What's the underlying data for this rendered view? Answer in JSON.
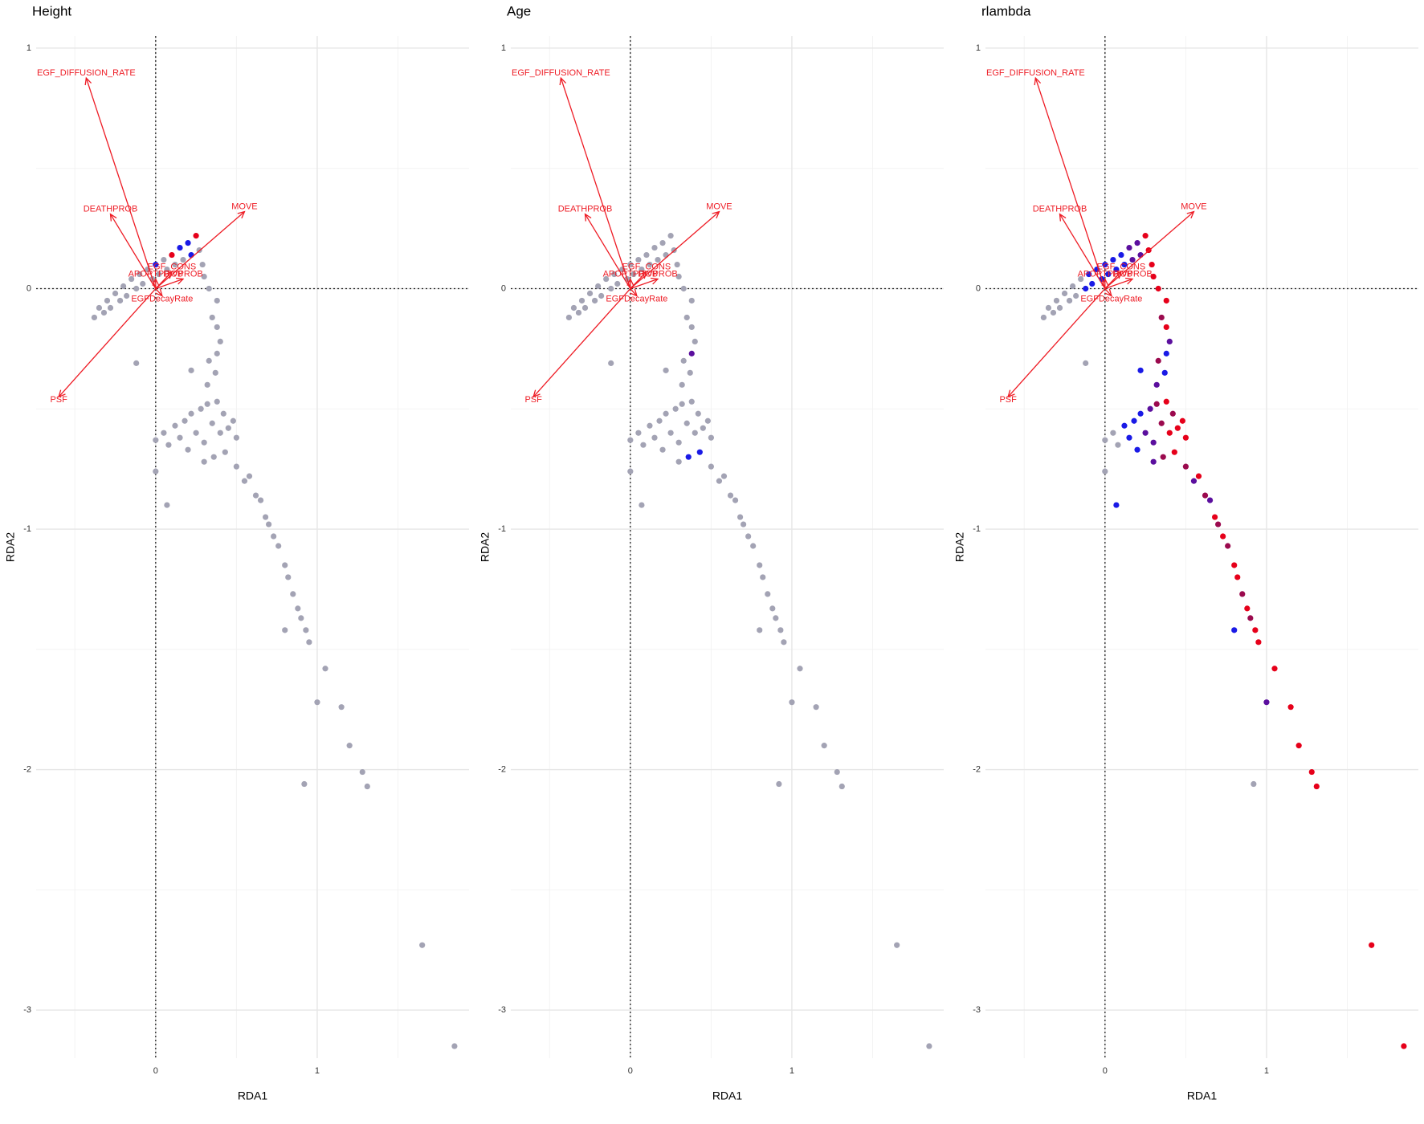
{
  "chart_data": [
    {
      "type": "biplot",
      "title": "Height",
      "x_label": "RDA1",
      "y_label": "RDA2",
      "xlim": [
        -0.74,
        1.94
      ],
      "ylim": [
        -3.2,
        1.05
      ],
      "xticks": [
        0,
        1
      ],
      "yticks": [
        -3,
        -2,
        -1,
        0,
        1
      ],
      "xminor": [
        -0.5,
        0.5,
        1.5
      ],
      "yminor": [
        -2.5,
        -1.5,
        -0.5,
        0.5
      ],
      "grid": true,
      "vline": 0,
      "hline": 0,
      "arrow_color": "#ee1c25",
      "arrows": [
        {
          "label": "EGF_DIFFUSION_RATE",
          "x": -0.43,
          "y": 0.876
        },
        {
          "label": "DEATHPROB",
          "x": -0.28,
          "y": 0.31
        },
        {
          "label": "MOVE",
          "x": 0.55,
          "y": 0.32
        },
        {
          "label": "PSF",
          "x": -0.6,
          "y": -0.45
        },
        {
          "label": "EGF_CONS",
          "x": 0.1,
          "y": 0.07
        },
        {
          "label": "APOPTPROB",
          "x": 0.0,
          "y": 0.04
        },
        {
          "label": "DIVPROB",
          "x": 0.17,
          "y": 0.04
        },
        {
          "label": "EGFDecayRate",
          "x": 0.04,
          "y": -0.03
        }
      ],
      "points": {
        "x": [
          -0.38,
          -0.35,
          -0.32,
          -0.3,
          -0.28,
          -0.25,
          -0.22,
          -0.2,
          -0.18,
          -0.15,
          -0.12,
          -0.1,
          -0.08,
          -0.05,
          -0.02,
          0.0,
          0.02,
          0.05,
          0.07,
          0.1,
          0.12,
          0.15,
          0.17,
          0.2,
          0.22,
          0.25,
          0.27,
          0.29,
          0.3,
          0.33,
          0.38,
          0.35,
          0.38,
          0.4,
          0.38,
          0.33,
          0.37,
          0.32,
          0.22,
          -0.12,
          0.0,
          0.05,
          0.08,
          0.12,
          0.15,
          0.18,
          0.2,
          0.22,
          0.25,
          0.28,
          0.3,
          0.32,
          0.35,
          0.38,
          0.4,
          0.42,
          0.45,
          0.48,
          0.5,
          0.3,
          0.36,
          0.43,
          0.0,
          0.07,
          0.5,
          0.55,
          0.58,
          0.62,
          0.65,
          0.68,
          0.7,
          0.73,
          0.76,
          0.8,
          0.82,
          0.85,
          0.88,
          0.9,
          0.93,
          0.8,
          0.95,
          1.05,
          1.0,
          1.15,
          1.2,
          1.28,
          1.31,
          0.92,
          1.65,
          1.85
        ],
        "y": [
          -0.12,
          -0.08,
          -0.1,
          -0.05,
          -0.08,
          -0.02,
          -0.05,
          0.01,
          -0.03,
          0.04,
          0.0,
          0.06,
          0.02,
          0.08,
          0.04,
          0.1,
          0.06,
          0.12,
          0.08,
          0.14,
          0.1,
          0.17,
          0.12,
          0.19,
          0.14,
          0.22,
          0.16,
          0.1,
          0.05,
          0.0,
          -0.05,
          -0.12,
          -0.16,
          -0.22,
          -0.27,
          -0.3,
          -0.35,
          -0.4,
          -0.34,
          -0.31,
          -0.63,
          -0.6,
          -0.65,
          -0.57,
          -0.62,
          -0.55,
          -0.67,
          -0.52,
          -0.6,
          -0.5,
          -0.64,
          -0.48,
          -0.56,
          -0.47,
          -0.6,
          -0.52,
          -0.58,
          -0.55,
          -0.62,
          -0.72,
          -0.7,
          -0.68,
          -0.76,
          -0.9,
          -0.74,
          -0.8,
          -0.78,
          -0.86,
          -0.88,
          -0.95,
          -0.98,
          -1.03,
          -1.07,
          -1.15,
          -1.2,
          -1.27,
          -1.33,
          -1.37,
          -1.42,
          -1.42,
          -1.47,
          -1.58,
          -1.72,
          -1.74,
          -1.9,
          -2.01,
          -2.07,
          -2.06,
          -2.73,
          -3.15
        ],
        "colors": [
          "#a3a3b4",
          "#a3a3b4",
          "#a3a3b4",
          "#a3a3b4",
          "#a3a3b4",
          "#a3a3b4",
          "#a3a3b4",
          "#a3a3b4",
          "#a3a3b4",
          "#a3a3b4",
          "#a3a3b4",
          "#a3a3b4",
          "#a3a3b4",
          "#a3a3b4",
          "#a3a3b4",
          "#1a1ae6",
          "#a3a3b4",
          "#a3a3b4",
          "#a3a3b4",
          "#e6001a",
          "#a3a3b4",
          "#1a1ae6",
          "#a3a3b4",
          "#1a1ae6",
          "#1a1ae6",
          "#e6001a",
          "#a3a3b4",
          "#a3a3b4",
          "#a3a3b4",
          "#a3a3b4",
          "#a3a3b4",
          "#a3a3b4",
          "#a3a3b4",
          "#a3a3b4",
          "#a3a3b4",
          "#a3a3b4",
          "#a3a3b4",
          "#a3a3b4",
          "#a3a3b4",
          "#a3a3b4",
          "#a3a3b4",
          "#a3a3b4",
          "#a3a3b4",
          "#a3a3b4",
          "#a3a3b4",
          "#a3a3b4",
          "#a3a3b4",
          "#a3a3b4",
          "#a3a3b4",
          "#a3a3b4",
          "#a3a3b4",
          "#a3a3b4",
          "#a3a3b4",
          "#a3a3b4",
          "#a3a3b4",
          "#a3a3b4",
          "#a3a3b4",
          "#a3a3b4",
          "#a3a3b4",
          "#a3a3b4",
          "#a3a3b4",
          "#a3a3b4",
          "#a3a3b4",
          "#a3a3b4",
          "#a3a3b4",
          "#a3a3b4",
          "#a3a3b4",
          "#a3a3b4",
          "#a3a3b4",
          "#a3a3b4",
          "#a3a3b4",
          "#a3a3b4",
          "#a3a3b4",
          "#a3a3b4",
          "#a3a3b4",
          "#a3a3b4",
          "#a3a3b4",
          "#a3a3b4",
          "#a3a3b4",
          "#a3a3b4",
          "#a3a3b4",
          "#a3a3b4",
          "#a3a3b4",
          "#a3a3b4",
          "#a3a3b4",
          "#a3a3b4",
          "#a3a3b4",
          "#a3a3b4",
          "#a3a3b4",
          "#a3a3b4"
        ]
      }
    },
    {
      "type": "biplot",
      "title": "Age",
      "x_label": "RDA1",
      "y_label": "RDA2",
      "xlim": [
        -0.74,
        1.94
      ],
      "ylim": [
        -3.2,
        1.05
      ],
      "xticks": [
        0,
        1
      ],
      "yticks": [
        -3,
        -2,
        -1,
        0,
        1
      ],
      "xminor": [
        -0.5,
        0.5,
        1.5
      ],
      "yminor": [
        -2.5,
        -1.5,
        -0.5,
        0.5
      ],
      "grid": true,
      "vline": 0,
      "hline": 0,
      "arrow_color": "#ee1c25",
      "arrows": [
        {
          "label": "EGF_DIFFUSION_RATE",
          "x": -0.43,
          "y": 0.876
        },
        {
          "label": "DEATHPROB",
          "x": -0.28,
          "y": 0.31
        },
        {
          "label": "MOVE",
          "x": 0.55,
          "y": 0.32
        },
        {
          "label": "PSF",
          "x": -0.6,
          "y": -0.45
        },
        {
          "label": "EGF_CONS",
          "x": 0.1,
          "y": 0.07
        },
        {
          "label": "APOPTPROB",
          "x": 0.0,
          "y": 0.04
        },
        {
          "label": "DIVPROB",
          "x": 0.17,
          "y": 0.04
        },
        {
          "label": "EGFDecayRate",
          "x": 0.04,
          "y": -0.03
        }
      ],
      "points": {
        "x": [
          -0.38,
          -0.35,
          -0.32,
          -0.3,
          -0.28,
          -0.25,
          -0.22,
          -0.2,
          -0.18,
          -0.15,
          -0.12,
          -0.1,
          -0.08,
          -0.05,
          -0.02,
          0.0,
          0.02,
          0.05,
          0.07,
          0.1,
          0.12,
          0.15,
          0.17,
          0.2,
          0.22,
          0.25,
          0.27,
          0.29,
          0.3,
          0.33,
          0.38,
          0.35,
          0.38,
          0.4,
          0.38,
          0.33,
          0.37,
          0.32,
          0.22,
          -0.12,
          0.0,
          0.05,
          0.08,
          0.12,
          0.15,
          0.18,
          0.2,
          0.22,
          0.25,
          0.28,
          0.3,
          0.32,
          0.35,
          0.38,
          0.4,
          0.42,
          0.45,
          0.48,
          0.5,
          0.3,
          0.36,
          0.43,
          0.0,
          0.07,
          0.5,
          0.55,
          0.58,
          0.62,
          0.65,
          0.68,
          0.7,
          0.73,
          0.76,
          0.8,
          0.82,
          0.85,
          0.88,
          0.9,
          0.93,
          0.8,
          0.95,
          1.05,
          1.0,
          1.15,
          1.2,
          1.28,
          1.31,
          0.92,
          1.65,
          1.85
        ],
        "y": [
          -0.12,
          -0.08,
          -0.1,
          -0.05,
          -0.08,
          -0.02,
          -0.05,
          0.01,
          -0.03,
          0.04,
          0.0,
          0.06,
          0.02,
          0.08,
          0.04,
          0.1,
          0.06,
          0.12,
          0.08,
          0.14,
          0.1,
          0.17,
          0.12,
          0.19,
          0.14,
          0.22,
          0.16,
          0.1,
          0.05,
          0.0,
          -0.05,
          -0.12,
          -0.16,
          -0.22,
          -0.27,
          -0.3,
          -0.35,
          -0.4,
          -0.34,
          -0.31,
          -0.63,
          -0.6,
          -0.65,
          -0.57,
          -0.62,
          -0.55,
          -0.67,
          -0.52,
          -0.6,
          -0.5,
          -0.64,
          -0.48,
          -0.56,
          -0.47,
          -0.6,
          -0.52,
          -0.58,
          -0.55,
          -0.62,
          -0.72,
          -0.7,
          -0.68,
          -0.76,
          -0.9,
          -0.74,
          -0.8,
          -0.78,
          -0.86,
          -0.88,
          -0.95,
          -0.98,
          -1.03,
          -1.07,
          -1.15,
          -1.2,
          -1.27,
          -1.33,
          -1.37,
          -1.42,
          -1.42,
          -1.47,
          -1.58,
          -1.72,
          -1.74,
          -1.9,
          -2.01,
          -2.07,
          -2.06,
          -2.73,
          -3.15
        ],
        "colors": [
          "#a3a3b4",
          "#a3a3b4",
          "#a3a3b4",
          "#a3a3b4",
          "#a3a3b4",
          "#a3a3b4",
          "#a3a3b4",
          "#a3a3b4",
          "#a3a3b4",
          "#a3a3b4",
          "#a3a3b4",
          "#a3a3b4",
          "#a3a3b4",
          "#a3a3b4",
          "#a3a3b4",
          "#a3a3b4",
          "#a3a3b4",
          "#a3a3b4",
          "#a3a3b4",
          "#a3a3b4",
          "#a3a3b4",
          "#a3a3b4",
          "#a3a3b4",
          "#a3a3b4",
          "#a3a3b4",
          "#a3a3b4",
          "#a3a3b4",
          "#a3a3b4",
          "#a3a3b4",
          "#a3a3b4",
          "#a3a3b4",
          "#a3a3b4",
          "#a3a3b4",
          "#a3a3b4",
          "#5b0f9e",
          "#a3a3b4",
          "#a3a3b4",
          "#a3a3b4",
          "#a3a3b4",
          "#a3a3b4",
          "#a3a3b4",
          "#a3a3b4",
          "#a3a3b4",
          "#a3a3b4",
          "#a3a3b4",
          "#a3a3b4",
          "#a3a3b4",
          "#a3a3b4",
          "#a3a3b4",
          "#a3a3b4",
          "#a3a3b4",
          "#a3a3b4",
          "#a3a3b4",
          "#a3a3b4",
          "#a3a3b4",
          "#a3a3b4",
          "#a3a3b4",
          "#a3a3b4",
          "#a3a3b4",
          "#a3a3b4",
          "#1a1ae6",
          "#1a1ae6",
          "#a3a3b4",
          "#a3a3b4",
          "#a3a3b4",
          "#a3a3b4",
          "#a3a3b4",
          "#a3a3b4",
          "#a3a3b4",
          "#a3a3b4",
          "#a3a3b4",
          "#a3a3b4",
          "#a3a3b4",
          "#a3a3b4",
          "#a3a3b4",
          "#a3a3b4",
          "#a3a3b4",
          "#a3a3b4",
          "#a3a3b4",
          "#a3a3b4",
          "#a3a3b4",
          "#a3a3b4",
          "#a3a3b4",
          "#a3a3b4",
          "#a3a3b4",
          "#a3a3b4",
          "#a3a3b4",
          "#a3a3b4",
          "#a3a3b4",
          "#a3a3b4"
        ]
      }
    },
    {
      "type": "biplot",
      "title": "rlambda",
      "x_label": "RDA1",
      "y_label": "RDA2",
      "xlim": [
        -0.74,
        1.94
      ],
      "ylim": [
        -3.2,
        1.05
      ],
      "xticks": [
        0,
        1
      ],
      "yticks": [
        -3,
        -2,
        -1,
        0,
        1
      ],
      "xminor": [
        -0.5,
        0.5,
        1.5
      ],
      "yminor": [
        -2.5,
        -1.5,
        -0.5,
        0.5
      ],
      "grid": true,
      "vline": 0,
      "hline": 0,
      "arrow_color": "#ee1c25",
      "arrows": [
        {
          "label": "EGF_DIFFUSION_RATE",
          "x": -0.43,
          "y": 0.876
        },
        {
          "label": "DEATHPROB",
          "x": -0.28,
          "y": 0.31
        },
        {
          "label": "MOVE",
          "x": 0.55,
          "y": 0.32
        },
        {
          "label": "PSF",
          "x": -0.6,
          "y": -0.45
        },
        {
          "label": "EGF_CONS",
          "x": 0.1,
          "y": 0.07
        },
        {
          "label": "APOPTPROB",
          "x": 0.0,
          "y": 0.04
        },
        {
          "label": "DIVPROB",
          "x": 0.17,
          "y": 0.04
        },
        {
          "label": "EGFDecayRate",
          "x": 0.04,
          "y": -0.03
        }
      ],
      "points": {
        "x": [
          -0.38,
          -0.35,
          -0.32,
          -0.3,
          -0.28,
          -0.25,
          -0.22,
          -0.2,
          -0.18,
          -0.15,
          -0.12,
          -0.1,
          -0.08,
          -0.05,
          -0.02,
          0.0,
          0.02,
          0.05,
          0.07,
          0.1,
          0.12,
          0.15,
          0.17,
          0.2,
          0.22,
          0.25,
          0.27,
          0.29,
          0.3,
          0.33,
          0.38,
          0.35,
          0.38,
          0.4,
          0.38,
          0.33,
          0.37,
          0.32,
          0.22,
          -0.12,
          0.0,
          0.05,
          0.08,
          0.12,
          0.15,
          0.18,
          0.2,
          0.22,
          0.25,
          0.28,
          0.3,
          0.32,
          0.35,
          0.38,
          0.4,
          0.42,
          0.45,
          0.48,
          0.5,
          0.3,
          0.36,
          0.43,
          0.0,
          0.07,
          0.5,
          0.55,
          0.58,
          0.62,
          0.65,
          0.68,
          0.7,
          0.73,
          0.76,
          0.8,
          0.82,
          0.85,
          0.88,
          0.9,
          0.93,
          0.8,
          0.95,
          1.05,
          1.0,
          1.15,
          1.2,
          1.28,
          1.31,
          0.92,
          1.65,
          1.85
        ],
        "y": [
          -0.12,
          -0.08,
          -0.1,
          -0.05,
          -0.08,
          -0.02,
          -0.05,
          0.01,
          -0.03,
          0.04,
          0.0,
          0.06,
          0.02,
          0.08,
          0.04,
          0.1,
          0.06,
          0.12,
          0.08,
          0.14,
          0.1,
          0.17,
          0.12,
          0.19,
          0.14,
          0.22,
          0.16,
          0.1,
          0.05,
          0.0,
          -0.05,
          -0.12,
          -0.16,
          -0.22,
          -0.27,
          -0.3,
          -0.35,
          -0.4,
          -0.34,
          -0.31,
          -0.63,
          -0.6,
          -0.65,
          -0.57,
          -0.62,
          -0.55,
          -0.67,
          -0.52,
          -0.6,
          -0.5,
          -0.64,
          -0.48,
          -0.56,
          -0.47,
          -0.6,
          -0.52,
          -0.58,
          -0.55,
          -0.62,
          -0.72,
          -0.7,
          -0.68,
          -0.76,
          -0.9,
          -0.74,
          -0.8,
          -0.78,
          -0.86,
          -0.88,
          -0.95,
          -0.98,
          -1.03,
          -1.07,
          -1.15,
          -1.2,
          -1.27,
          -1.33,
          -1.37,
          -1.42,
          -1.42,
          -1.47,
          -1.58,
          -1.72,
          -1.74,
          -1.9,
          -2.01,
          -2.07,
          -2.06,
          -2.73,
          -3.15
        ],
        "colors": [
          "#a3a3b4",
          "#a3a3b4",
          "#a3a3b4",
          "#a3a3b4",
          "#a3a3b4",
          "#a3a3b4",
          "#a3a3b4",
          "#a3a3b4",
          "#a3a3b4",
          "#a3a3b4",
          "#1a1ae6",
          "#1a1ae6",
          "#1a1ae6",
          "#1a1ae6",
          "#1a1ae6",
          "#1a1ae6",
          "#1a1ae6",
          "#1a1ae6",
          "#1a1ae6",
          "#1a1ae6",
          "#1a1ae6",
          "#5b0f9e",
          "#5b0f9e",
          "#5b0f9e",
          "#5b0f9e",
          "#e6001a",
          "#e6001a",
          "#e6001a",
          "#e6001a",
          "#e6001a",
          "#e6001a",
          "#9b0a4e",
          "#e6001a",
          "#5b0f9e",
          "#1a1ae6",
          "#9b0a4e",
          "#1a1ae6",
          "#5b0f9e",
          "#1a1ae6",
          "#a3a3b4",
          "#a3a3b4",
          "#a3a3b4",
          "#a3a3b4",
          "#1a1ae6",
          "#1a1ae6",
          "#1a1ae6",
          "#1a1ae6",
          "#1a1ae6",
          "#5b0f9e",
          "#5b0f9e",
          "#5b0f9e",
          "#9b0a4e",
          "#9b0a4e",
          "#e6001a",
          "#e6001a",
          "#9b0a4e",
          "#e6001a",
          "#e6001a",
          "#e6001a",
          "#5b0f9e",
          "#9b0a4e",
          "#e6001a",
          "#a3a3b4",
          "#1a1ae6",
          "#9b0a4e",
          "#5b0f9e",
          "#e6001a",
          "#9b0a4e",
          "#5b0f9e",
          "#e6001a",
          "#9b0a4e",
          "#e6001a",
          "#9b0a4e",
          "#e6001a",
          "#e6001a",
          "#9b0a4e",
          "#e6001a",
          "#9b0a4e",
          "#e6001a",
          "#1a1ae6",
          "#e6001a",
          "#e6001a",
          "#5b0f9e",
          "#e6001a",
          "#e6001a",
          "#e6001a",
          "#e6001a",
          "#a3a3b4",
          "#e6001a",
          "#e6001a"
        ]
      }
    }
  ]
}
